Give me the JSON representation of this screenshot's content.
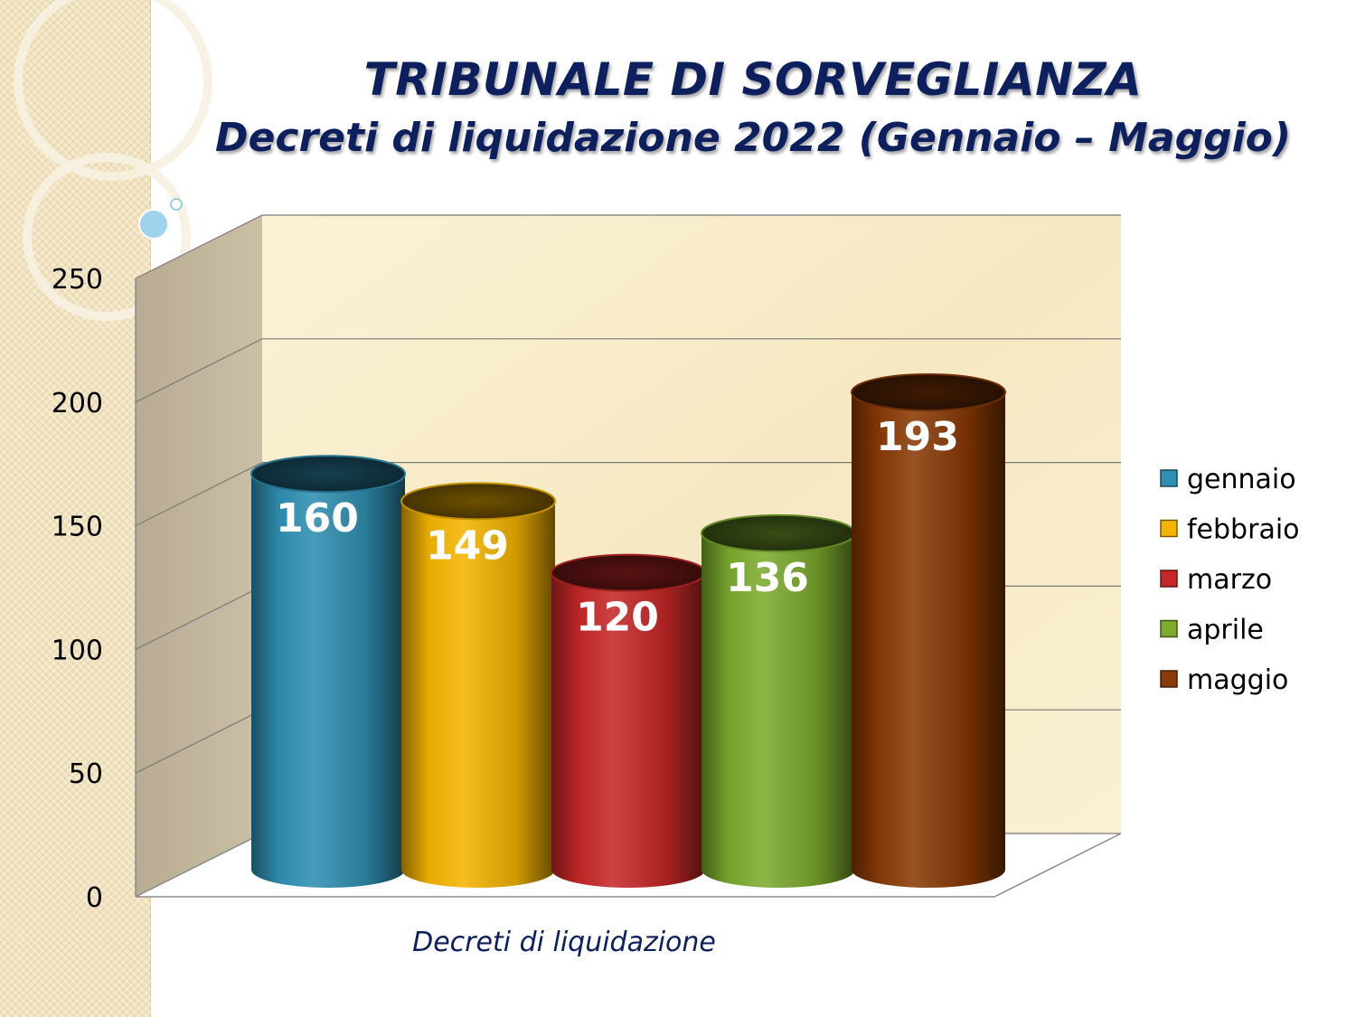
{
  "slide": {
    "title": "TRIBUNALE DI SORVEGLIANZA",
    "subtitle": "Decreti di liquidazione 2022 (Gennaio – Maggio)"
  },
  "chart_data": {
    "type": "bar",
    "style": "3d-cylinder",
    "title": "TRIBUNALE DI SORVEGLIANZA",
    "subtitle": "Decreti di liquidazione 2022 (Gennaio – Maggio)",
    "categories": [
      "Decreti di liquidazione"
    ],
    "xlabel": "Decreti di liquidazione",
    "ylabel": "",
    "ylim": [
      0,
      250
    ],
    "yticks": [
      0,
      50,
      100,
      150,
      200,
      250
    ],
    "grid": true,
    "legend_position": "right",
    "series": [
      {
        "name": "gennaio",
        "values": [
          160
        ],
        "color": "#2f8fb2"
      },
      {
        "name": "febbraio",
        "values": [
          149
        ],
        "color": "#f4b400"
      },
      {
        "name": "marzo",
        "values": [
          120
        ],
        "color": "#c62828"
      },
      {
        "name": "aprile",
        "values": [
          136
        ],
        "color": "#7cab2e"
      },
      {
        "name": "maggio",
        "values": [
          193
        ],
        "color": "#8a3a06"
      }
    ]
  }
}
